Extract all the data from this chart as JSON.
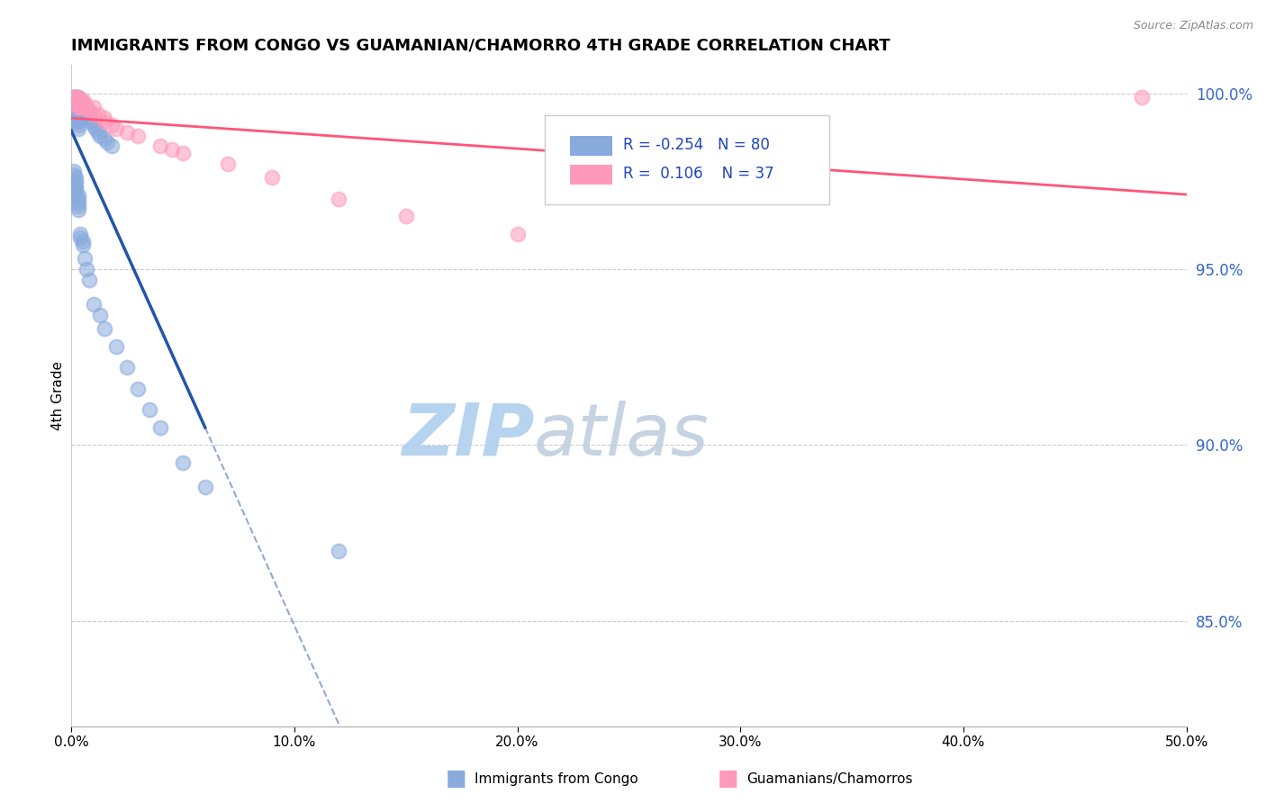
{
  "title": "IMMIGRANTS FROM CONGO VS GUAMANIAN/CHAMORRO 4TH GRADE CORRELATION CHART",
  "source": "Source: ZipAtlas.com",
  "ylabel": "4th Grade",
  "x_lim": [
    0.0,
    0.5
  ],
  "y_lim": [
    0.82,
    1.008
  ],
  "legend_r_blue": "-0.254",
  "legend_n_blue": "80",
  "legend_r_pink": "0.106",
  "legend_n_pink": "37",
  "blue_color": "#88AADD",
  "pink_color": "#FF99BB",
  "blue_line_color": "#2255AA",
  "pink_line_color": "#FF5577",
  "watermark_zip_color": "#AACCEE",
  "watermark_atlas_color": "#BBCCDD",
  "blue_scatter_x": [
    0.001,
    0.001,
    0.001,
    0.002,
    0.002,
    0.002,
    0.002,
    0.002,
    0.002,
    0.002,
    0.002,
    0.002,
    0.002,
    0.002,
    0.003,
    0.003,
    0.003,
    0.003,
    0.003,
    0.003,
    0.003,
    0.003,
    0.003,
    0.003,
    0.004,
    0.004,
    0.004,
    0.004,
    0.004,
    0.004,
    0.005,
    0.005,
    0.005,
    0.005,
    0.005,
    0.006,
    0.006,
    0.006,
    0.007,
    0.007,
    0.008,
    0.008,
    0.009,
    0.01,
    0.011,
    0.012,
    0.013,
    0.015,
    0.016,
    0.018,
    0.001,
    0.001,
    0.002,
    0.002,
    0.002,
    0.002,
    0.002,
    0.003,
    0.003,
    0.003,
    0.003,
    0.003,
    0.004,
    0.004,
    0.005,
    0.005,
    0.006,
    0.007,
    0.008,
    0.01,
    0.013,
    0.015,
    0.02,
    0.025,
    0.03,
    0.035,
    0.04,
    0.05,
    0.06,
    0.12
  ],
  "blue_scatter_y": [
    0.999,
    0.999,
    0.998,
    0.999,
    0.999,
    0.998,
    0.997,
    0.997,
    0.996,
    0.996,
    0.995,
    0.994,
    0.993,
    0.992,
    0.999,
    0.998,
    0.997,
    0.996,
    0.995,
    0.994,
    0.993,
    0.992,
    0.991,
    0.99,
    0.998,
    0.997,
    0.996,
    0.995,
    0.994,
    0.993,
    0.997,
    0.996,
    0.995,
    0.994,
    0.993,
    0.996,
    0.995,
    0.994,
    0.995,
    0.994,
    0.994,
    0.993,
    0.992,
    0.991,
    0.99,
    0.989,
    0.988,
    0.987,
    0.986,
    0.985,
    0.978,
    0.977,
    0.976,
    0.975,
    0.974,
    0.973,
    0.972,
    0.971,
    0.97,
    0.969,
    0.968,
    0.967,
    0.96,
    0.959,
    0.958,
    0.957,
    0.953,
    0.95,
    0.947,
    0.94,
    0.937,
    0.933,
    0.928,
    0.922,
    0.916,
    0.91,
    0.905,
    0.895,
    0.888,
    0.87
  ],
  "pink_scatter_x": [
    0.001,
    0.001,
    0.002,
    0.002,
    0.002,
    0.003,
    0.003,
    0.003,
    0.003,
    0.004,
    0.004,
    0.004,
    0.005,
    0.005,
    0.005,
    0.006,
    0.006,
    0.007,
    0.008,
    0.01,
    0.01,
    0.012,
    0.015,
    0.015,
    0.018,
    0.02,
    0.025,
    0.03,
    0.04,
    0.045,
    0.05,
    0.07,
    0.09,
    0.12,
    0.15,
    0.2,
    0.48
  ],
  "pink_scatter_y": [
    0.999,
    0.998,
    0.999,
    0.998,
    0.997,
    0.999,
    0.998,
    0.997,
    0.996,
    0.998,
    0.997,
    0.996,
    0.998,
    0.997,
    0.996,
    0.997,
    0.996,
    0.996,
    0.995,
    0.996,
    0.994,
    0.994,
    0.993,
    0.992,
    0.991,
    0.99,
    0.989,
    0.988,
    0.985,
    0.984,
    0.983,
    0.98,
    0.976,
    0.97,
    0.965,
    0.96,
    0.999
  ],
  "y_tick_positions": [
    0.85,
    0.9,
    0.95,
    1.0
  ],
  "y_tick_labels": [
    "85.0%",
    "90.0%",
    "95.0%",
    "100.0%"
  ],
  "x_tick_positions": [
    0.0,
    0.1,
    0.2,
    0.3,
    0.4,
    0.5
  ],
  "x_tick_labels": [
    "0.0%",
    "10.0%",
    "20.0%",
    "30.0%",
    "40.0%",
    "50.0%"
  ]
}
